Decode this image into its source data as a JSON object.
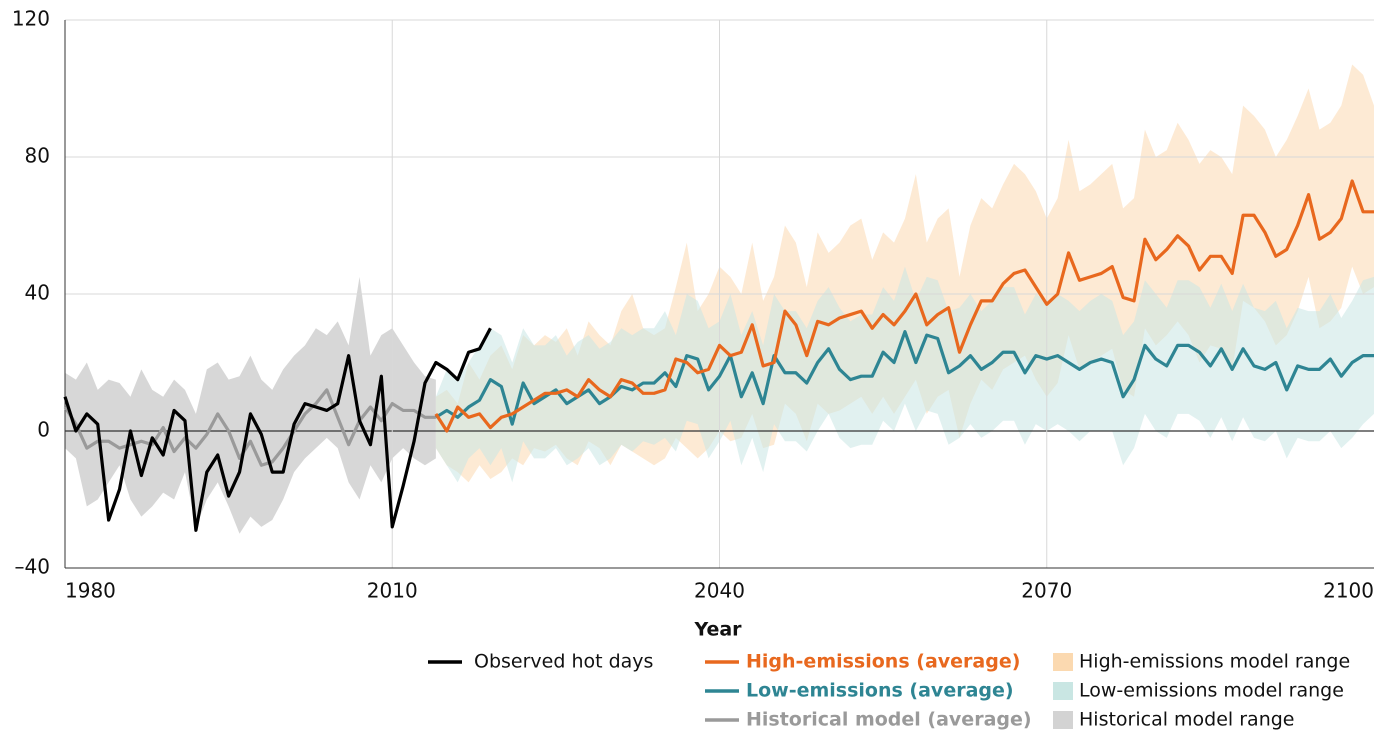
{
  "chart_data": {
    "type": "line",
    "x_label": "Year",
    "xlim": [
      1980,
      2100
    ],
    "ylim": [
      -40,
      120
    ],
    "xticks": [
      1980,
      2010,
      2040,
      2070,
      2100
    ],
    "yticks": [
      {
        "value": -40,
        "label": "–40"
      },
      0,
      40,
      80,
      120
    ],
    "grid": true,
    "series": [
      {
        "name": "Observed hot days",
        "color": "#000000",
        "x": [
          1980,
          1981,
          1982,
          1983,
          1984,
          1985,
          1986,
          1987,
          1988,
          1989,
          1990,
          1991,
          1992,
          1993,
          1994,
          1995,
          1996,
          1997,
          1998,
          1999,
          2000,
          2001,
          2002,
          2003,
          2004,
          2005,
          2006,
          2007,
          2008,
          2009,
          2010,
          2011,
          2012,
          2013,
          2014,
          2015,
          2016,
          2017,
          2018,
          2019
        ],
        "values": [
          10,
          0,
          5,
          2,
          -26,
          -17,
          0,
          -13,
          -2,
          -7,
          6,
          3,
          -29,
          -12,
          -7,
          -19,
          -12,
          5,
          -1,
          -12,
          -12,
          2,
          8,
          7,
          6,
          8,
          22,
          3,
          -4,
          16,
          -28,
          -16,
          -3,
          14,
          20,
          18,
          15,
          23,
          24,
          30
        ]
      },
      {
        "name": "High-emissions (average)",
        "color": "#e8681e",
        "x": [
          2014,
          2015,
          2016,
          2017,
          2018,
          2019,
          2020,
          2021,
          2022,
          2023,
          2024,
          2025,
          2026,
          2027,
          2028,
          2029,
          2030,
          2031,
          2032,
          2033,
          2034,
          2035,
          2036,
          2037,
          2038,
          2039,
          2040,
          2041,
          2042,
          2043,
          2044,
          2045,
          2046,
          2047,
          2048,
          2049,
          2050,
          2051,
          2052,
          2053,
          2054,
          2055,
          2056,
          2057,
          2058,
          2059,
          2060,
          2061,
          2062,
          2063,
          2064,
          2065,
          2066,
          2067,
          2068,
          2069,
          2070,
          2071,
          2072,
          2073,
          2074,
          2075,
          2076,
          2077,
          2078,
          2079,
          2080,
          2081,
          2082,
          2083,
          2084,
          2085,
          2086,
          2087,
          2088,
          2089,
          2090,
          2091,
          2092,
          2093,
          2094,
          2095,
          2096,
          2097,
          2098,
          2099,
          2100
        ],
        "values": [
          5,
          0,
          7,
          4,
          5,
          1,
          4,
          5,
          7,
          9,
          11,
          11,
          12,
          10,
          15,
          12,
          10,
          15,
          14,
          11,
          11,
          12,
          21,
          20,
          17,
          18,
          25,
          22,
          23,
          31,
          19,
          20,
          35,
          31,
          22,
          32,
          31,
          33,
          34,
          35,
          30,
          34,
          31,
          35,
          40,
          31,
          34,
          36,
          23,
          31,
          38,
          38,
          43,
          46,
          47,
          42,
          37,
          40,
          52,
          44,
          45,
          46,
          48,
          39,
          38,
          56,
          50,
          53,
          57,
          54,
          47,
          51,
          51,
          46,
          63,
          63,
          58,
          51,
          53,
          60,
          69,
          56,
          58,
          62,
          73,
          64,
          64
        ]
      },
      {
        "name": "Low-emissions (average)",
        "color": "#2e8593",
        "x": [
          2014,
          2015,
          2016,
          2017,
          2018,
          2019,
          2020,
          2021,
          2022,
          2023,
          2024,
          2025,
          2026,
          2027,
          2028,
          2029,
          2030,
          2031,
          2032,
          2033,
          2034,
          2035,
          2036,
          2037,
          2038,
          2039,
          2040,
          2041,
          2042,
          2043,
          2044,
          2045,
          2046,
          2047,
          2048,
          2049,
          2050,
          2051,
          2052,
          2053,
          2054,
          2055,
          2056,
          2057,
          2058,
          2059,
          2060,
          2061,
          2062,
          2063,
          2064,
          2065,
          2066,
          2067,
          2068,
          2069,
          2070,
          2071,
          2072,
          2073,
          2074,
          2075,
          2076,
          2077,
          2078,
          2079,
          2080,
          2081,
          2082,
          2083,
          2084,
          2085,
          2086,
          2087,
          2088,
          2089,
          2090,
          2091,
          2092,
          2093,
          2094,
          2095,
          2096,
          2097,
          2098,
          2099,
          2100
        ],
        "values": [
          4,
          6,
          4,
          7,
          9,
          15,
          13,
          2,
          14,
          8,
          10,
          12,
          8,
          10,
          12,
          8,
          10,
          13,
          12,
          14,
          14,
          17,
          13,
          22,
          21,
          12,
          16,
          22,
          10,
          17,
          8,
          22,
          17,
          17,
          14,
          20,
          24,
          18,
          15,
          16,
          16,
          23,
          20,
          29,
          20,
          28,
          27,
          17,
          19,
          22,
          18,
          20,
          23,
          23,
          17,
          22,
          21,
          22,
          20,
          18,
          20,
          21,
          20,
          10,
          15,
          25,
          21,
          19,
          25,
          25,
          23,
          19,
          24,
          18,
          24,
          19,
          18,
          20,
          12,
          19,
          18,
          18,
          21,
          16,
          20,
          22,
          22
        ]
      },
      {
        "name": "Historical model (average)",
        "color": "#9a9a9a",
        "x": [
          1980,
          1981,
          1982,
          1983,
          1984,
          1985,
          1986,
          1987,
          1988,
          1989,
          1990,
          1991,
          1992,
          1993,
          1994,
          1995,
          1996,
          1997,
          1998,
          1999,
          2000,
          2001,
          2002,
          2003,
          2004,
          2005,
          2006,
          2007,
          2008,
          2009,
          2010,
          2011,
          2012,
          2013,
          2014
        ],
        "values": [
          7,
          2,
          -5,
          -3,
          -3,
          -5,
          -4,
          -3,
          -4,
          1,
          -6,
          -2,
          -5,
          -1,
          5,
          0,
          -8,
          -3,
          -10,
          -9,
          -5,
          0,
          5,
          8,
          12,
          4,
          -4,
          3,
          7,
          3,
          8,
          6,
          6,
          4,
          4
        ]
      }
    ],
    "bands": [
      {
        "name": "High-emissions model range",
        "color": "#fbd9b0",
        "x": [
          2014,
          2015,
          2016,
          2017,
          2018,
          2019,
          2020,
          2021,
          2022,
          2023,
          2024,
          2025,
          2026,
          2027,
          2028,
          2029,
          2030,
          2031,
          2032,
          2033,
          2034,
          2035,
          2036,
          2037,
          2038,
          2039,
          2040,
          2041,
          2042,
          2043,
          2044,
          2045,
          2046,
          2047,
          2048,
          2049,
          2050,
          2051,
          2052,
          2053,
          2054,
          2055,
          2056,
          2057,
          2058,
          2059,
          2060,
          2061,
          2062,
          2063,
          2064,
          2065,
          2066,
          2067,
          2068,
          2069,
          2070,
          2071,
          2072,
          2073,
          2074,
          2075,
          2076,
          2077,
          2078,
          2079,
          2080,
          2081,
          2082,
          2083,
          2084,
          2085,
          2086,
          2087,
          2088,
          2089,
          2090,
          2091,
          2092,
          2093,
          2094,
          2095,
          2096,
          2097,
          2098,
          2099,
          2100
        ],
        "lower": [
          -5,
          -10,
          -12,
          -15,
          -10,
          -14,
          -12,
          -8,
          -10,
          -5,
          -6,
          -4,
          -8,
          -10,
          -3,
          -5,
          -10,
          -4,
          -6,
          -8,
          -10,
          -8,
          -2,
          -5,
          -8,
          -5,
          0,
          -3,
          -2,
          5,
          -5,
          -4,
          8,
          5,
          -3,
          8,
          5,
          6,
          8,
          10,
          5,
          10,
          5,
          10,
          15,
          5,
          10,
          12,
          -2,
          8,
          15,
          12,
          18,
          20,
          22,
          15,
          10,
          14,
          28,
          18,
          20,
          22,
          24,
          12,
          10,
          30,
          25,
          28,
          32,
          28,
          20,
          25,
          24,
          18,
          38,
          36,
          32,
          25,
          28,
          35,
          45,
          30,
          32,
          36,
          48,
          40,
          42
        ],
        "upper": [
          10,
          12,
          8,
          20,
          15,
          22,
          25,
          18,
          28,
          25,
          28,
          26,
          30,
          22,
          32,
          28,
          25,
          35,
          40,
          30,
          28,
          30,
          42,
          55,
          35,
          40,
          48,
          45,
          40,
          55,
          38,
          45,
          60,
          55,
          42,
          58,
          52,
          55,
          60,
          62,
          50,
          58,
          55,
          62,
          75,
          55,
          62,
          65,
          45,
          60,
          68,
          65,
          72,
          78,
          75,
          70,
          62,
          68,
          85,
          70,
          72,
          75,
          78,
          65,
          68,
          88,
          80,
          82,
          90,
          85,
          78,
          82,
          80,
          75,
          95,
          92,
          88,
          80,
          85,
          92,
          100,
          88,
          90,
          95,
          107,
          104,
          95
        ]
      },
      {
        "name": "Low-emissions model range",
        "color": "#c9e6e3",
        "x": [
          2014,
          2015,
          2016,
          2017,
          2018,
          2019,
          2020,
          2021,
          2022,
          2023,
          2024,
          2025,
          2026,
          2027,
          2028,
          2029,
          2030,
          2031,
          2032,
          2033,
          2034,
          2035,
          2036,
          2037,
          2038,
          2039,
          2040,
          2041,
          2042,
          2043,
          2044,
          2045,
          2046,
          2047,
          2048,
          2049,
          2050,
          2051,
          2052,
          2053,
          2054,
          2055,
          2056,
          2057,
          2058,
          2059,
          2060,
          2061,
          2062,
          2063,
          2064,
          2065,
          2066,
          2067,
          2068,
          2069,
          2070,
          2071,
          2072,
          2073,
          2074,
          2075,
          2076,
          2077,
          2078,
          2079,
          2080,
          2081,
          2082,
          2083,
          2084,
          2085,
          2086,
          2087,
          2088,
          2089,
          2090,
          2091,
          2092,
          2093,
          2094,
          2095,
          2096,
          2097,
          2098,
          2099,
          2100
        ],
        "lower": [
          -5,
          -10,
          -15,
          -8,
          -5,
          -10,
          -5,
          -15,
          -3,
          -8,
          -8,
          -5,
          -10,
          -8,
          -5,
          -10,
          -8,
          -4,
          -6,
          -3,
          -4,
          -2,
          -6,
          3,
          2,
          -8,
          -3,
          3,
          -10,
          -2,
          -12,
          2,
          -3,
          -3,
          -6,
          0,
          5,
          -2,
          -5,
          -4,
          -4,
          3,
          0,
          8,
          0,
          6,
          5,
          -4,
          -2,
          2,
          -2,
          0,
          3,
          3,
          -4,
          2,
          0,
          2,
          0,
          -3,
          0,
          0,
          0,
          -10,
          -5,
          5,
          0,
          -2,
          5,
          5,
          3,
          -2,
          4,
          -3,
          4,
          -2,
          -3,
          0,
          -8,
          -2,
          -3,
          -3,
          0,
          -5,
          -2,
          2,
          5
        ],
        "upper": [
          10,
          18,
          15,
          20,
          25,
          30,
          28,
          20,
          30,
          25,
          25,
          28,
          22,
          26,
          28,
          24,
          26,
          30,
          28,
          30,
          30,
          35,
          28,
          40,
          38,
          30,
          32,
          40,
          28,
          35,
          25,
          40,
          35,
          35,
          30,
          38,
          42,
          36,
          32,
          34,
          34,
          42,
          38,
          48,
          38,
          45,
          44,
          35,
          36,
          40,
          35,
          38,
          42,
          42,
          34,
          40,
          38,
          40,
          38,
          35,
          38,
          40,
          38,
          28,
          32,
          44,
          40,
          36,
          44,
          44,
          42,
          36,
          43,
          35,
          43,
          36,
          35,
          38,
          30,
          36,
          35,
          35,
          40,
          33,
          38,
          44,
          45
        ]
      },
      {
        "name": "Historical model range",
        "color": "#d3d3d3",
        "x": [
          1980,
          1981,
          1982,
          1983,
          1984,
          1985,
          1986,
          1987,
          1988,
          1989,
          1990,
          1991,
          1992,
          1993,
          1994,
          1995,
          1996,
          1997,
          1998,
          1999,
          2000,
          2001,
          2002,
          2003,
          2004,
          2005,
          2006,
          2007,
          2008,
          2009,
          2010,
          2011,
          2012,
          2013,
          2014
        ],
        "lower": [
          -5,
          -8,
          -22,
          -20,
          -15,
          -10,
          -20,
          -25,
          -22,
          -18,
          -20,
          -12,
          -28,
          -20,
          -15,
          -22,
          -30,
          -25,
          -28,
          -26,
          -20,
          -12,
          -8,
          -5,
          -2,
          -5,
          -15,
          -20,
          -10,
          -15,
          -8,
          -5,
          -8,
          -10,
          -8
        ],
        "upper": [
          17,
          15,
          20,
          12,
          15,
          14,
          10,
          18,
          12,
          10,
          15,
          12,
          5,
          18,
          20,
          15,
          16,
          22,
          15,
          12,
          18,
          22,
          25,
          30,
          28,
          32,
          25,
          45,
          22,
          28,
          30,
          25,
          20,
          16,
          15
        ]
      }
    ]
  }
}
